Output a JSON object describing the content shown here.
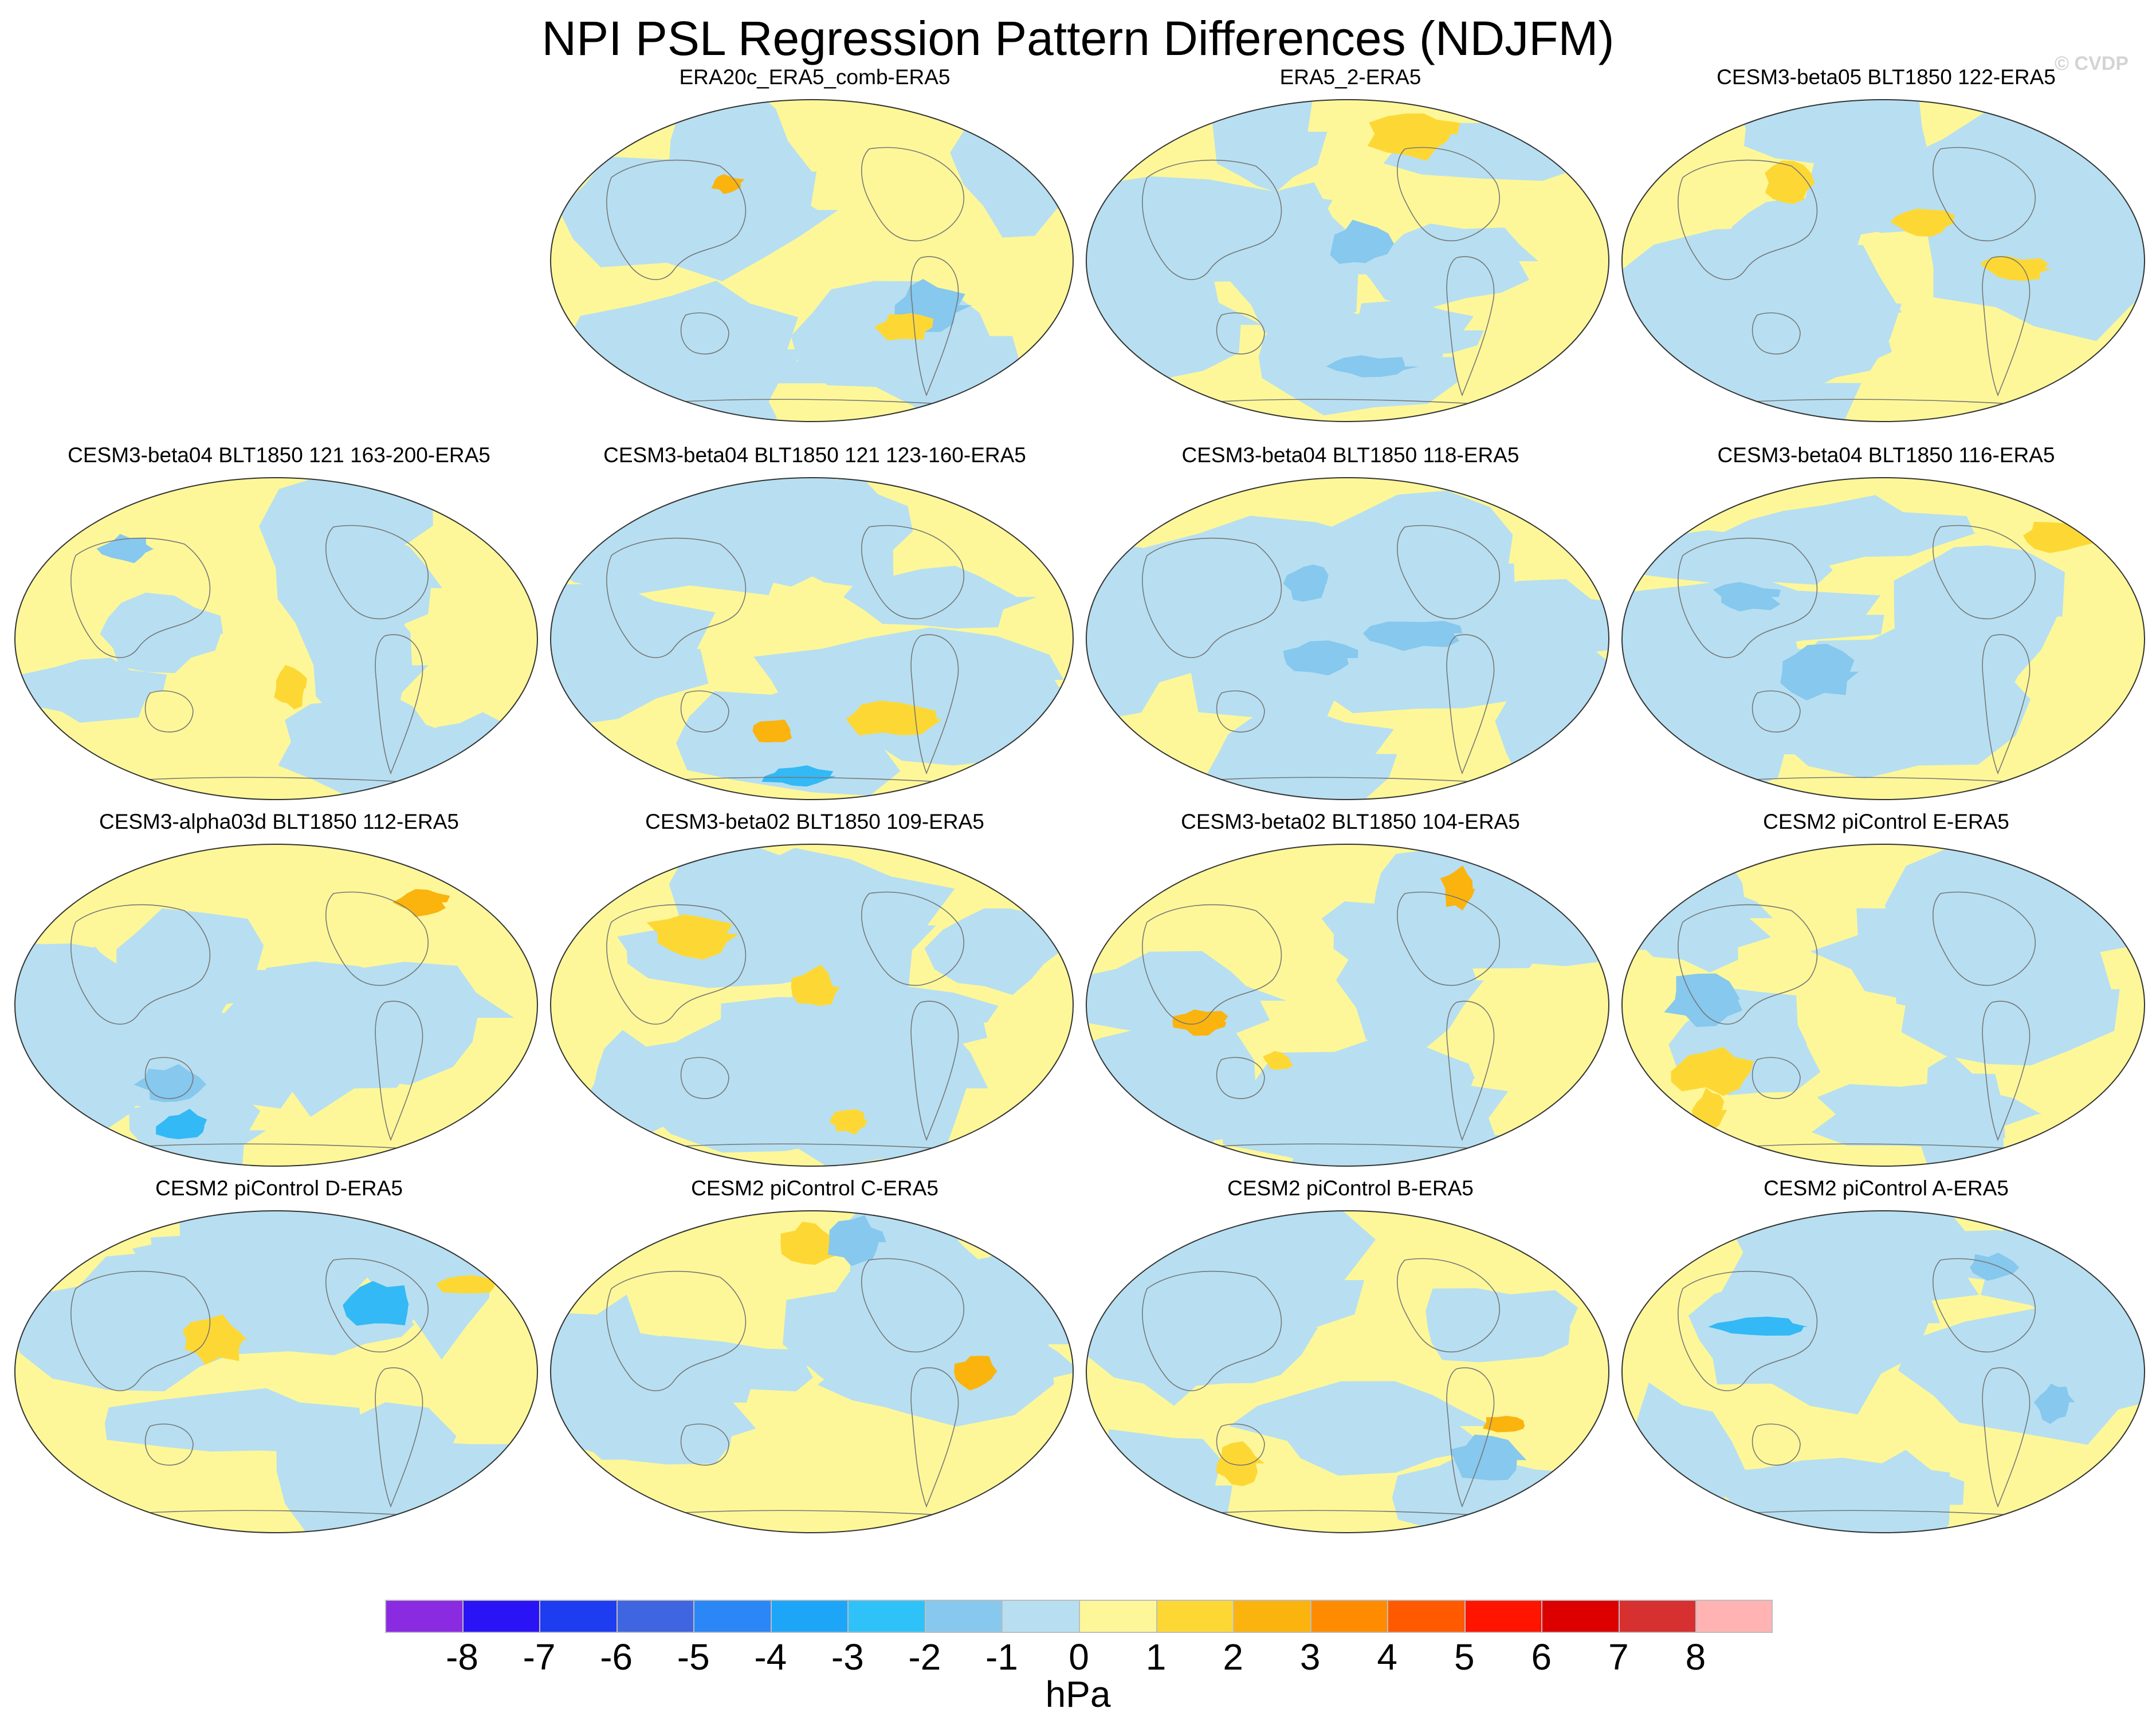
{
  "title": "NPI PSL Regression Pattern Differences (NDJFM)",
  "watermark": "© CVDP",
  "colors": {
    "ocean_neg": "#b7dff1",
    "land_pos": "#fdf799",
    "pos_1_2": "#fdd835",
    "pos_2_3": "#fbb30e",
    "neg_1_2": "#86c8ee",
    "neg_2_3": "#33b9f5",
    "coast": "#777777"
  },
  "panels": [
    {
      "title": "ERA20c_ERA5_comb-ERA5",
      "slot": 1
    },
    {
      "title": "ERA5_2-ERA5",
      "slot": 2
    },
    {
      "title": "CESM3-beta05 BLT1850 122-ERA5",
      "slot": 3
    },
    {
      "title": "CESM3-beta04 BLT1850 121 163-200-ERA5",
      "slot": 4
    },
    {
      "title": "CESM3-beta04 BLT1850 121 123-160-ERA5",
      "slot": 5
    },
    {
      "title": "CESM3-beta04 BLT1850 118-ERA5",
      "slot": 6
    },
    {
      "title": "CESM3-beta04 BLT1850 116-ERA5",
      "slot": 7
    },
    {
      "title": "CESM3-alpha03d BLT1850 112-ERA5",
      "slot": 8
    },
    {
      "title": "CESM3-beta02 BLT1850 109-ERA5",
      "slot": 9
    },
    {
      "title": "CESM3-beta02 BLT1850 104-ERA5",
      "slot": 10
    },
    {
      "title": "CESM2 piControl E-ERA5",
      "slot": 11
    },
    {
      "title": "CESM2 piControl D-ERA5",
      "slot": 12
    },
    {
      "title": "CESM2 piControl C-ERA5",
      "slot": 13
    },
    {
      "title": "CESM2 piControl B-ERA5",
      "slot": 14
    },
    {
      "title": "CESM2 piControl A-ERA5",
      "slot": 15
    }
  ],
  "colorbar": {
    "units": "hPa",
    "labels": [
      "-8",
      "-7",
      "-6",
      "-5",
      "-4",
      "-3",
      "-2",
      "-1",
      "0",
      "1",
      "2",
      "3",
      "4",
      "5",
      "6",
      "7",
      "8"
    ],
    "colors": [
      "#8a2be2",
      "#2a14f5",
      "#1e3cf0",
      "#3f66e0",
      "#2b87f5",
      "#1da5f7",
      "#2fc2f9",
      "#86c8ee",
      "#b7dff1",
      "#fdf799",
      "#fdd835",
      "#fbb30e",
      "#ff8c00",
      "#ff5a00",
      "#ff1400",
      "#dc0000",
      "#d73030",
      "#ffb3b3"
    ]
  }
}
